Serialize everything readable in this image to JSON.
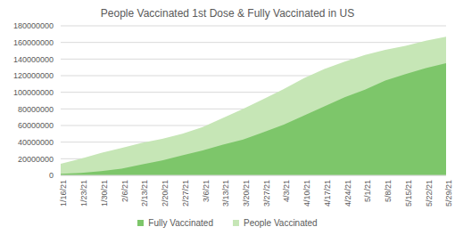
{
  "chart_data": {
    "type": "area",
    "title": "People Vaccinated 1st Dose & Fully Vaccinated in US",
    "categories": [
      "1/16/21",
      "1/23/21",
      "1/30/21",
      "2/6/21",
      "2/13/21",
      "2/20/21",
      "2/27/21",
      "3/6/21",
      "3/13/21",
      "3/20/21",
      "3/27/21",
      "4/3/21",
      "4/10/21",
      "4/17/21",
      "4/24/21",
      "5/1/21",
      "5/8/21",
      "5/15/21",
      "5/22/21",
      "5/29/21"
    ],
    "series": [
      {
        "name": "Fully Vaccinated",
        "color": "#7dc66a",
        "values": [
          2000000,
          3000000,
          5000000,
          8000000,
          13000000,
          18000000,
          24000000,
          30000000,
          37000000,
          43000000,
          52000000,
          61000000,
          72000000,
          83000000,
          94000000,
          103000000,
          114000000,
          122000000,
          129000000,
          135000000
        ]
      },
      {
        "name": "People Vaccinated",
        "color": "#c6e6b6",
        "values": [
          14000000,
          20000000,
          27000000,
          33000000,
          39000000,
          44000000,
          50000000,
          58000000,
          69000000,
          80000000,
          92000000,
          104000000,
          117000000,
          128000000,
          137000000,
          145000000,
          151000000,
          156000000,
          162000000,
          167000000
        ]
      }
    ],
    "ylim": [
      0,
      180000000
    ],
    "yticks": [
      0,
      20000000,
      40000000,
      60000000,
      80000000,
      100000000,
      120000000,
      140000000,
      160000000,
      180000000
    ],
    "grid": true,
    "stacked": false,
    "legend": "bottom"
  }
}
